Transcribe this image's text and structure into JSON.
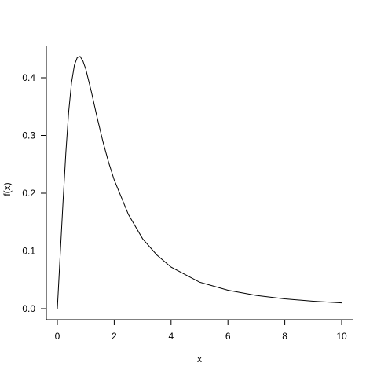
{
  "chart_data": {
    "type": "line",
    "title": "",
    "xlabel": "x",
    "ylabel": "f(x)",
    "xlim": [
      0,
      10
    ],
    "ylim": [
      0,
      0.44
    ],
    "x_ticks": [
      0,
      2,
      4,
      6,
      8,
      10
    ],
    "x_tick_labels": [
      "0",
      "2",
      "4",
      "6",
      "8",
      "10"
    ],
    "y_ticks": [
      0.0,
      0.1,
      0.2,
      0.3,
      0.4
    ],
    "y_tick_labels": [
      "0.0",
      "0.1",
      "0.2",
      "0.3",
      "0.4"
    ],
    "grid": false,
    "legend": "none",
    "series": [
      {
        "line_color": "#000000",
        "x": [
          0,
          0.1,
          0.2,
          0.3,
          0.4,
          0.5,
          0.6,
          0.7,
          0.8,
          0.9,
          1.0,
          1.2,
          1.4,
          1.6,
          1.8,
          2.0,
          2.5,
          3.0,
          3.5,
          4.0,
          5.0,
          6.0,
          7.0,
          8.0,
          9.0,
          10.0
        ],
        "y": [
          0.0,
          0.093,
          0.185,
          0.271,
          0.342,
          0.392,
          0.422,
          0.435,
          0.437,
          0.429,
          0.415,
          0.375,
          0.331,
          0.29,
          0.254,
          0.223,
          0.163,
          0.121,
          0.093,
          0.072,
          0.046,
          0.032,
          0.023,
          0.017,
          0.013,
          0.01
        ]
      }
    ]
  }
}
